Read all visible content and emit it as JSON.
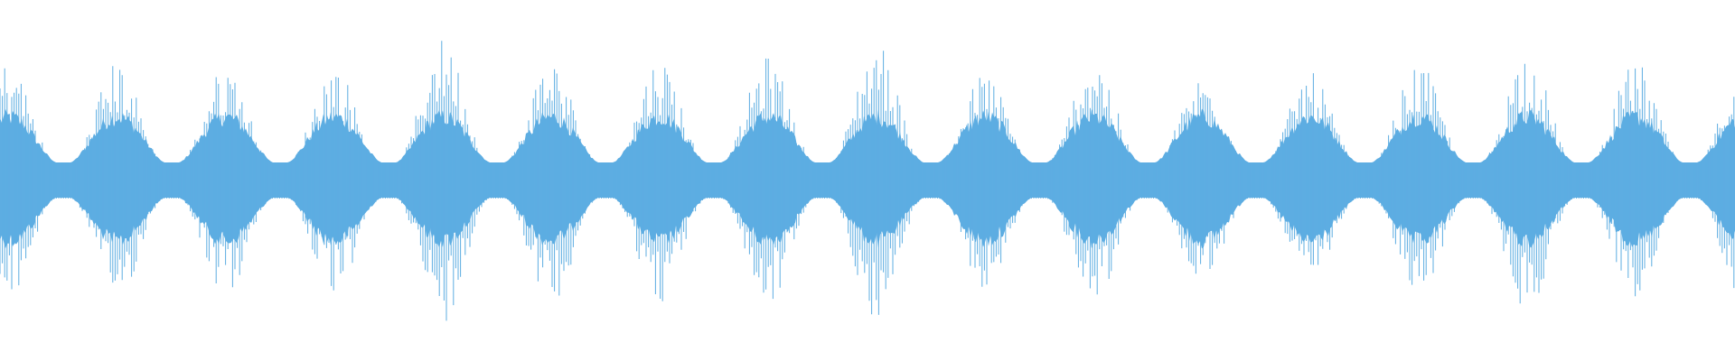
{
  "chart_data": {
    "type": "waveform",
    "color": "#5dade2",
    "background": "#ffffff",
    "amplitude_range": [
      -1,
      1
    ],
    "grid": false,
    "axes_visible": false,
    "burst_peak_amplitudes": [
      0.66,
      0.66,
      0.64,
      0.64,
      0.79,
      0.68,
      0.68,
      0.69,
      0.77,
      0.6,
      0.69,
      0.58,
      0.6,
      0.65,
      0.72,
      0.66
    ],
    "burst_body_amplitude": 0.35,
    "baseline_amplitude": 0.1
  }
}
